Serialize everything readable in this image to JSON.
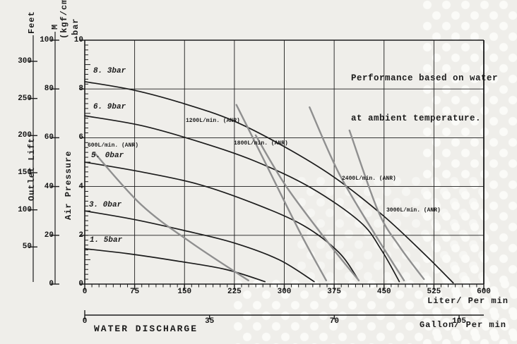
{
  "colors": {
    "ink": "#1c1c1c",
    "air_line_gray": "#8f8f8f",
    "background": "#efeeea"
  },
  "note": {
    "line1": "Performance based on water",
    "line2": "at ambient temperature."
  },
  "bottom_title": "WATER DISCHARGE",
  "chart_data": {
    "type": "line",
    "title": "Performance based on water at ambient temperature.",
    "x_axis_liter": {
      "unit_label": "Liter/ Per min",
      "ticks": [
        0,
        75,
        150,
        225,
        300,
        375,
        450,
        525,
        600
      ],
      "range": [
        0,
        600
      ]
    },
    "x_axis_gallon": {
      "unit_label": "Gallon/ Per min",
      "ticks": [
        0,
        35,
        70,
        105
      ]
    },
    "y_axis_bar": {
      "label_top1": "(kgf/cm2)",
      "label_top2": "bar",
      "title": "Air Pressure",
      "ticks": [
        10,
        8,
        6,
        4,
        2,
        0
      ],
      "range": [
        0,
        10
      ]
    },
    "y_axis_m": {
      "label_top": "M",
      "ticks": [
        100,
        80,
        60,
        40,
        20,
        0
      ],
      "range": [
        0,
        100
      ]
    },
    "y_axis_feet": {
      "label_top": "Feet",
      "title": "Outlet Lift",
      "ticks": [
        300,
        250,
        200,
        150,
        100,
        50
      ]
    },
    "grid": true,
    "pressure_curves": [
      {
        "label": "8. 3bar",
        "points_liter_bar": [
          [
            0,
            8.3
          ],
          [
            74,
            7.95
          ],
          [
            149,
            7.4
          ],
          [
            223,
            6.7
          ],
          [
            299,
            5.65
          ],
          [
            374,
            4.4
          ],
          [
            449,
            2.8
          ],
          [
            510,
            1.25
          ],
          [
            554,
            0.05
          ]
        ]
      },
      {
        "label": "6. 9bar",
        "points_liter_bar": [
          [
            0,
            6.9
          ],
          [
            85,
            6.5
          ],
          [
            170,
            5.85
          ],
          [
            255,
            5.05
          ],
          [
            340,
            3.95
          ],
          [
            414,
            2.55
          ],
          [
            446,
            1.4
          ],
          [
            473,
            0.1
          ]
        ]
      },
      {
        "label": "5. 0bar",
        "points_liter_bar": [
          [
            0,
            5.0
          ],
          [
            85,
            4.6
          ],
          [
            170,
            4.1
          ],
          [
            255,
            3.3
          ],
          [
            329,
            2.4
          ],
          [
            382,
            1.3
          ],
          [
            412,
            0.15
          ]
        ]
      },
      {
        "label": "3. 0bar",
        "points_liter_bar": [
          [
            0,
            3.0
          ],
          [
            74,
            2.65
          ],
          [
            149,
            2.2
          ],
          [
            223,
            1.7
          ],
          [
            292,
            1.0
          ],
          [
            345,
            0.1
          ]
        ]
      },
      {
        "label": "1. 5bar",
        "points_liter_bar": [
          [
            0,
            1.45
          ],
          [
            64,
            1.25
          ],
          [
            138,
            0.95
          ],
          [
            212,
            0.6
          ],
          [
            271,
            0.1
          ]
        ]
      }
    ],
    "air_consumption_lines": [
      {
        "label": "600L/min. (ANR)",
        "points_liter_bar": [
          [
            14,
            5.4
          ],
          [
            85,
            3.25
          ],
          [
            160,
            1.7
          ],
          [
            246,
            0.15
          ]
        ]
      },
      {
        "label": "1200L/min. (ANR)",
        "points_liter_bar": [
          [
            228,
            7.35
          ],
          [
            271,
            5.0
          ],
          [
            324,
            2.1
          ],
          [
            363,
            0.15
          ]
        ]
      },
      {
        "label": "1800L/min. (ANR)",
        "points_liter_bar": [
          [
            257,
            6.1
          ],
          [
            303,
            4.0
          ],
          [
            366,
            1.7
          ],
          [
            412,
            0.15
          ]
        ]
      },
      {
        "label": "2400L/min. (ANR)",
        "points_liter_bar": [
          [
            338,
            7.25
          ],
          [
            382,
            4.55
          ],
          [
            435,
            2.1
          ],
          [
            480,
            0.15
          ]
        ]
      },
      {
        "label": "3000L/min. (ANR)",
        "points_liter_bar": [
          [
            398,
            6.3
          ],
          [
            441,
            3.0
          ],
          [
            473,
            1.55
          ],
          [
            510,
            0.2
          ]
        ]
      }
    ]
  }
}
